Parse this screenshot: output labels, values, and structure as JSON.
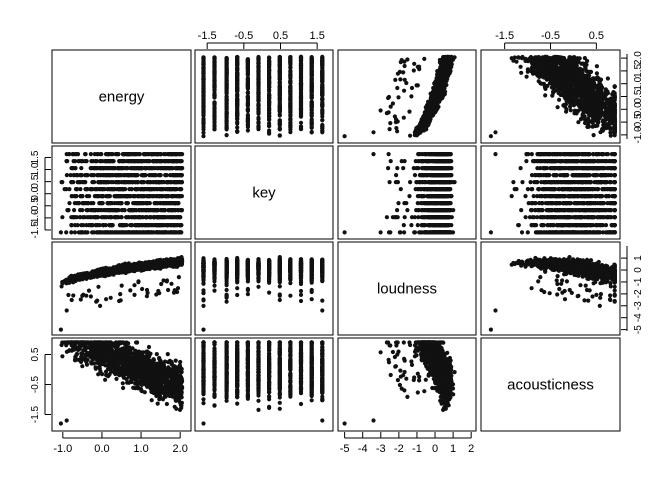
{
  "chart_data": {
    "type": "scatter",
    "kind": "pairs-matrix",
    "variables": [
      "energy",
      "key",
      "loudness",
      "acousticness"
    ],
    "ranges": {
      "energy": [
        -1.2,
        2.2
      ],
      "key": [
        -1.75,
        1.85
      ],
      "loudness": [
        -5.2,
        2.1
      ],
      "acousticness": [
        -1.95,
        0.95
      ]
    },
    "axes": {
      "top": [
        {
          "column": 1,
          "ticks": [
            -1.5,
            -0.5,
            0.5,
            1.5
          ],
          "labels": [
            "-1.5",
            "-0.5",
            "0.5",
            "1.5"
          ]
        },
        {
          "column": 3,
          "ticks": [
            -1.5,
            -0.5,
            0.5
          ],
          "labels": [
            "-1.5",
            "-0.5",
            "0.5"
          ]
        }
      ],
      "bottom": [
        {
          "column": 0,
          "ticks": [
            -1.0,
            0.0,
            1.0,
            2.0
          ],
          "labels": [
            "-1.0",
            "0.0",
            "1.0",
            "2.0"
          ]
        },
        {
          "column": 2,
          "ticks": [
            -5,
            -4,
            -3,
            -2,
            -1,
            0,
            1,
            2
          ],
          "labels": [
            "-5",
            "-4",
            "-3",
            "-2",
            "-1",
            "0",
            "1",
            "2"
          ]
        }
      ],
      "left": [
        {
          "row": 1,
          "ticks": [
            -1.5,
            -1.0,
            -0.5,
            0.0,
            0.5,
            1.0,
            1.5
          ],
          "labels": [
            "-1.5",
            "-1.0",
            "-0.5",
            "0.0",
            "0.5",
            "1.0",
            "1.5"
          ]
        },
        {
          "row": 3,
          "ticks": [
            -1.5,
            -0.5,
            0.5
          ],
          "labels": [
            "-1.5",
            "-0.5",
            "0.5"
          ]
        }
      ],
      "right": [
        {
          "row": 0,
          "ticks": [
            -1.0,
            0.0,
            1.0,
            2.0
          ],
          "labels": [
            "-1.0",
            "0.0",
            "1.0",
            "2.0"
          ]
        },
        {
          "row": 0,
          "ticks": [
            -0.5,
            0.5,
            1.5
          ],
          "labels": [
            "-0.5",
            "0.5",
            "1.5"
          ]
        },
        {
          "row": 2,
          "ticks": [
            -5,
            -3,
            -1,
            1
          ],
          "labels": [
            "-5",
            "-3",
            "-1",
            "1"
          ]
        },
        {
          "row": 2,
          "ticks": [
            -4,
            -2,
            0
          ],
          "labels": [
            "-4",
            "-2",
            "0"
          ]
        }
      ]
    },
    "key_levels": [
      -1.6,
      -1.3,
      -0.97,
      -0.68,
      -0.39,
      -0.1,
      0.19,
      0.48,
      0.77,
      1.06,
      1.35,
      1.64
    ],
    "point_color": "#111111",
    "frame_color": "#000000"
  }
}
